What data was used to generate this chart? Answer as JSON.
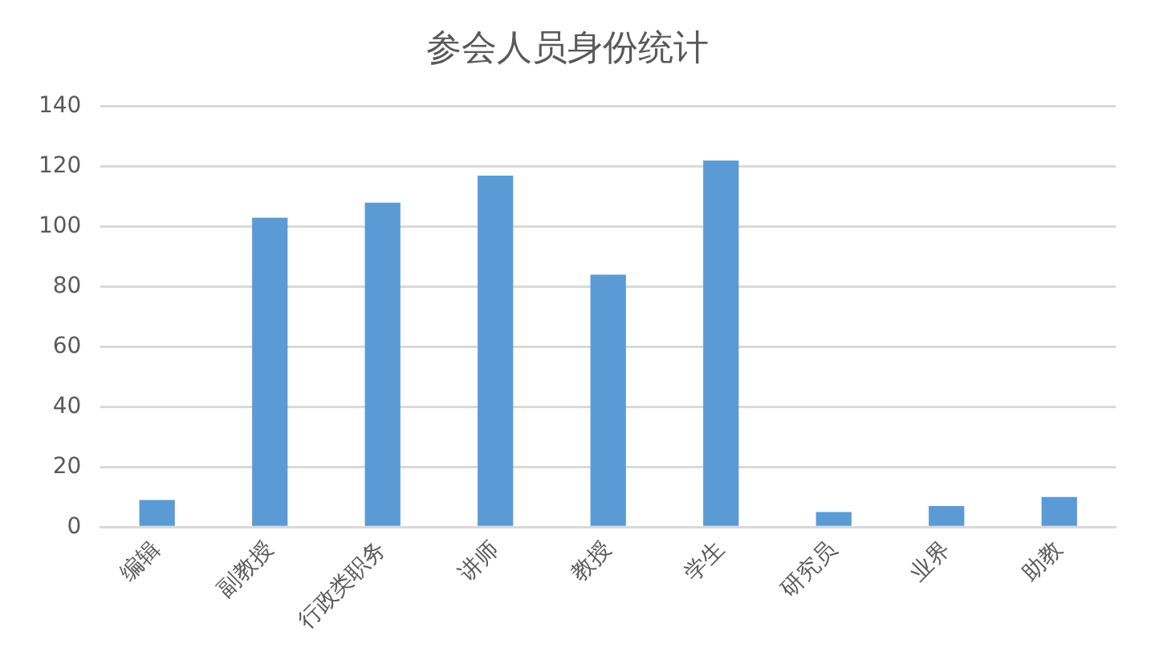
{
  "chart_data": {
    "type": "bar",
    "title": "参会人员身份统计",
    "categories": [
      "编辑",
      "副教授",
      "行政类职务",
      "讲师",
      "教授",
      "学生",
      "研究员",
      "业界",
      "助教"
    ],
    "values": [
      9,
      103,
      108,
      117,
      84,
      122,
      5,
      7,
      10
    ],
    "color": "#5b9bd5",
    "ylim": [
      0,
      140
    ],
    "yticks": [
      0,
      20,
      40,
      60,
      80,
      100,
      120,
      140
    ],
    "grid": "y",
    "legend": false
  }
}
